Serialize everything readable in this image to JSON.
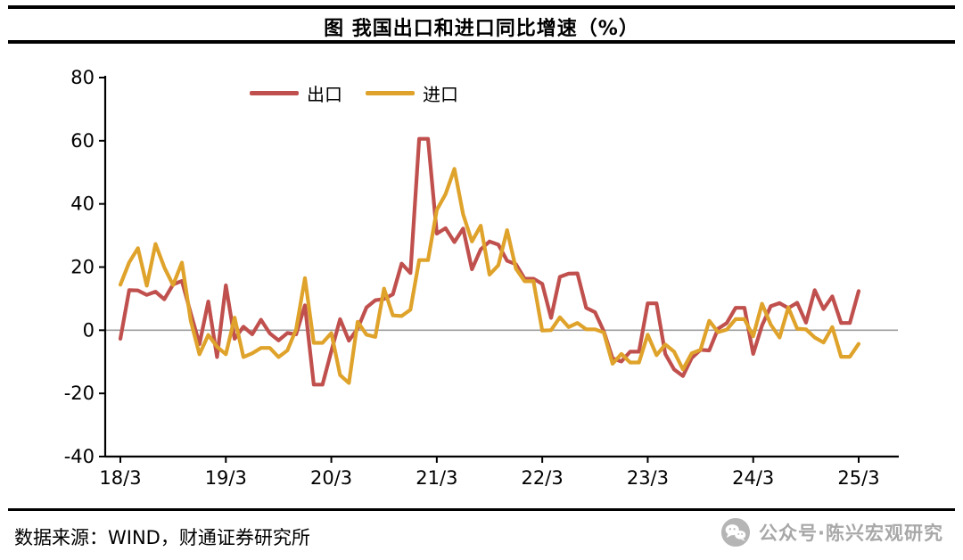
{
  "title": "图 我国出口和进口同比增速（%）",
  "footer": {
    "source": "数据来源：WIND，财通证券研究所",
    "watermark": "公众号·陈兴宏观研究"
  },
  "colors": {
    "export_line": "#c0504d",
    "import_line": "#dfa32b",
    "zero_line": "#9e9e9e",
    "axis": "#000000",
    "watermark": "#a8a8a8"
  },
  "chart_data": {
    "type": "line",
    "title": "图 我国出口和进口同比增速（%）",
    "xlabel": "",
    "ylabel": "",
    "ylim": [
      -40,
      80
    ],
    "y_ticks": [
      80,
      60,
      40,
      20,
      0,
      -20,
      -40
    ],
    "x_ticklabels": [
      "18/3",
      "19/3",
      "20/3",
      "21/3",
      "22/3",
      "23/3",
      "24/3",
      "25/3"
    ],
    "x_tick_indices": [
      0,
      12,
      24,
      36,
      48,
      60,
      72,
      84
    ],
    "x_frequency": "monthly",
    "grid": "zero-line-only",
    "legend_position": "top",
    "series": [
      {
        "name": "出口",
        "color": "#c0504d",
        "values": [
          -2.7,
          12.7,
          12.6,
          11.2,
          12.2,
          9.8,
          14.5,
          15.6,
          5.4,
          -4.4,
          9.1,
          -8.5,
          14.2,
          -2.7,
          1.1,
          -1.3,
          3.3,
          -1.0,
          -3.2,
          -0.9,
          -1.3,
          7.9,
          -17.2,
          -17.2,
          -6.6,
          3.5,
          -3.3,
          0.5,
          7.2,
          9.5,
          9.9,
          11.4,
          21.1,
          18.1,
          60.6,
          60.6,
          30.6,
          32.3,
          27.9,
          32.2,
          19.3,
          25.6,
          28.1,
          27.1,
          22.0,
          20.9,
          16.3,
          16.3,
          14.7,
          3.9,
          16.9,
          17.9,
          18.0,
          7.1,
          5.7,
          -0.3,
          -8.9,
          -9.9,
          -6.8,
          -6.8,
          8.5,
          8.5,
          -7.5,
          -12.4,
          -14.5,
          -8.8,
          -6.2,
          -6.4,
          0.5,
          2.3,
          7.1,
          7.1,
          -7.5,
          1.5,
          7.6,
          8.6,
          7.0,
          8.7,
          2.4,
          12.7,
          6.7,
          10.7,
          2.3,
          2.3,
          12.4
        ]
      },
      {
        "name": "进口",
        "color": "#dfa32b",
        "values": [
          14.4,
          21.5,
          26.0,
          14.1,
          27.3,
          19.9,
          14.3,
          21.4,
          3.0,
          -7.6,
          -1.5,
          -5.2,
          -7.6,
          4.0,
          -8.5,
          -7.3,
          -5.6,
          -5.6,
          -8.5,
          -6.4,
          0.3,
          16.5,
          -4.0,
          -4.0,
          -0.9,
          -14.2,
          -16.7,
          2.7,
          -1.4,
          -2.1,
          13.2,
          4.7,
          4.5,
          6.5,
          22.2,
          22.2,
          38.1,
          43.1,
          51.1,
          36.7,
          28.1,
          33.1,
          17.6,
          20.6,
          31.7,
          19.5,
          15.5,
          15.5,
          -0.1,
          0.0,
          4.1,
          1.0,
          2.3,
          0.3,
          0.3,
          -0.7,
          -10.6,
          -7.5,
          -10.2,
          -10.2,
          -1.4,
          -7.9,
          -4.5,
          -6.8,
          -12.4,
          -7.3,
          -6.2,
          3.0,
          -0.6,
          0.2,
          3.5,
          3.5,
          -1.9,
          8.4,
          1.8,
          -2.3,
          7.2,
          0.5,
          0.3,
          -2.3,
          -3.9,
          1.0,
          -8.4,
          -8.4,
          -4.3
        ]
      }
    ]
  }
}
